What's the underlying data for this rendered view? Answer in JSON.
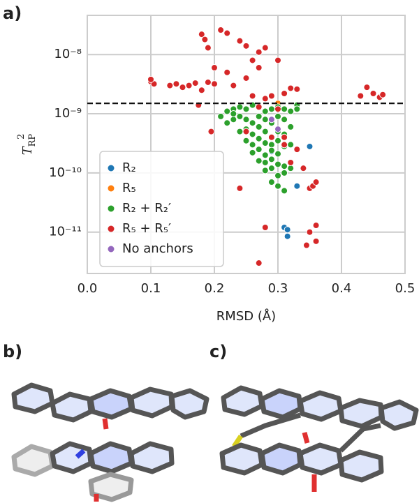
{
  "chart_data": {
    "type": "scatter",
    "panel_labels": [
      "a)",
      "b)",
      "c)"
    ],
    "xlabel": "RMSD (Å)",
    "ylabel": "T",
    "ylabel_sub": "RP",
    "ylabel_sup": "2",
    "xlim": [
      0,
      0.5
    ],
    "xticks": [
      {
        "value": 0,
        "label": "0.0"
      },
      0.1,
      0.2,
      0.3,
      0.4,
      0.5
    ],
    "ylim": [
      2e-12,
      4.6e-08
    ],
    "yticks": [
      {
        "value": 1e-11,
        "label": "10⁻¹¹"
      },
      {
        "value": 1e-10,
        "label": "10⁻¹⁰"
      },
      {
        "value": 1e-09,
        "label": "10⁻⁹"
      },
      {
        "value": 1e-08,
        "label": "10⁻⁸"
      }
    ],
    "log_y": true,
    "grid": true,
    "legend": "lower left",
    "hline": 1.5e-09,
    "series": [
      {
        "name": "R₂",
        "color": "#1f77b4",
        "x": [
          0.35,
          0.33,
          0.31,
          0.315,
          0.315,
          0.29
        ],
        "values": [
          2.8e-10,
          6e-11,
          1.2e-11,
          1.1e-11,
          8.5e-12,
          2.3e-10
        ]
      },
      {
        "name": "R₅",
        "color": "#ff7f0e",
        "x": [
          0.3,
          0.29
        ],
        "values": [
          1.5e-09,
          1.2e-09
        ]
      },
      {
        "name": "R₂ + R₂′",
        "color": "#2ca02c",
        "x": [
          0.22,
          0.23,
          0.24,
          0.25,
          0.26,
          0.27,
          0.28,
          0.29,
          0.3,
          0.31,
          0.32,
          0.33,
          0.22,
          0.23,
          0.24,
          0.25,
          0.26,
          0.27,
          0.28,
          0.29,
          0.3,
          0.31,
          0.32,
          0.24,
          0.25,
          0.26,
          0.27,
          0.28,
          0.29,
          0.3,
          0.31,
          0.25,
          0.26,
          0.27,
          0.28,
          0.29,
          0.3,
          0.26,
          0.27,
          0.28,
          0.29,
          0.3,
          0.31,
          0.27,
          0.28,
          0.29,
          0.3,
          0.31,
          0.28,
          0.29,
          0.3,
          0.31,
          0.32,
          0.29,
          0.3,
          0.31,
          0.23,
          0.21,
          0.33,
          0.32
        ],
        "values": [
          1.1e-09,
          1.2e-09,
          1.3e-09,
          1.2e-09,
          1.4e-09,
          1.3e-09,
          1.1e-09,
          1.2e-09,
          1.3e-09,
          1.2e-09,
          1.1e-09,
          1.4e-09,
          7e-10,
          8e-10,
          9e-10,
          8e-10,
          7e-10,
          9e-10,
          8e-10,
          7e-10,
          9e-10,
          8e-10,
          6e-10,
          5e-10,
          5.5e-10,
          4.5e-10,
          6e-10,
          5e-10,
          4e-10,
          5e-10,
          4.5e-10,
          3.5e-10,
          3e-10,
          3.8e-10,
          3.2e-10,
          3e-10,
          3.5e-10,
          2.2e-10,
          2.5e-10,
          2e-10,
          2.4e-10,
          2.1e-10,
          2.8e-10,
          1.6e-10,
          1.5e-10,
          1.7e-10,
          1.4e-10,
          1.3e-10,
          1.1e-10,
          1.2e-10,
          9e-11,
          1e-10,
          1.2e-10,
          7e-11,
          6e-11,
          5e-11,
          1e-09,
          9e-10,
          1.2e-09,
          3e-10
        ]
      },
      {
        "name": "R₅ + R₅′",
        "color": "#d62728",
        "x": [
          0.1,
          0.105,
          0.1,
          0.13,
          0.14,
          0.15,
          0.16,
          0.17,
          0.18,
          0.19,
          0.2,
          0.175,
          0.19,
          0.2,
          0.18,
          0.185,
          0.21,
          0.22,
          0.24,
          0.25,
          0.26,
          0.27,
          0.22,
          0.23,
          0.25,
          0.27,
          0.28,
          0.29,
          0.31,
          0.32,
          0.33,
          0.3,
          0.28,
          0.26,
          0.195,
          0.27,
          0.25,
          0.29,
          0.31,
          0.32,
          0.34,
          0.35,
          0.355,
          0.36,
          0.36,
          0.35,
          0.345,
          0.36,
          0.27,
          0.28,
          0.24,
          0.44,
          0.43,
          0.45,
          0.46,
          0.465,
          0.3,
          0.31,
          0.33
        ],
        "values": [
          3.5e-09,
          3.2e-09,
          3.8e-09,
          3e-09,
          3.2e-09,
          2.8e-09,
          3e-09,
          3.3e-09,
          2.5e-09,
          3.4e-09,
          3.2e-09,
          1.4e-09,
          1.3e-08,
          6e-09,
          2.2e-08,
          1.8e-08,
          2.6e-08,
          2.3e-08,
          1.7e-08,
          1.4e-08,
          8e-09,
          6e-09,
          5e-09,
          3e-09,
          4e-09,
          1.1e-08,
          1.3e-08,
          2e-09,
          2.2e-09,
          2.7e-09,
          2.6e-09,
          8e-09,
          1.8e-09,
          2e-09,
          5e-10,
          1.3e-09,
          5e-10,
          4e-10,
          3e-10,
          1.5e-10,
          1.2e-10,
          5.5e-11,
          6e-11,
          7e-11,
          1.3e-11,
          1e-11,
          6e-12,
          7e-12,
          3e-12,
          1.2e-11,
          5.5e-11,
          2.8e-09,
          2e-09,
          2.2e-09,
          1.9e-09,
          2.1e-09,
          1.2e-09,
          4e-10,
          2.5e-10
        ]
      },
      {
        "name": "No anchors",
        "color": "#9467bd",
        "x": [
          0.29,
          0.3
        ],
        "values": [
          8e-10,
          5.5e-10
        ]
      }
    ]
  }
}
